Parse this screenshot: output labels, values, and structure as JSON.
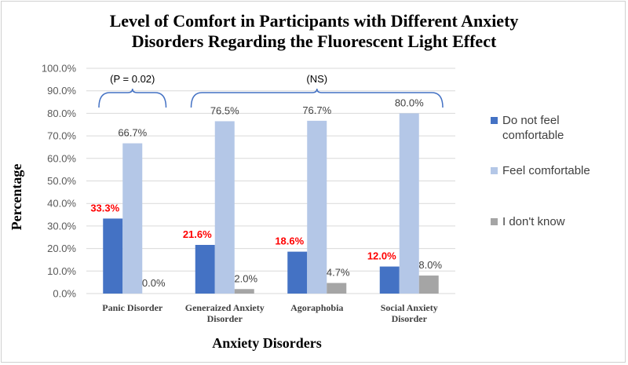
{
  "chart_data": {
    "type": "bar",
    "title_lines": [
      "Level of Comfort in Participants with Different Anxiety",
      "Disorders Regarding the Fluorescent Light Effect"
    ],
    "xlabel": "Anxiety Disorders",
    "ylabel": "Percentage",
    "ylim": [
      0,
      100
    ],
    "yticks": [
      "0.0%",
      "10.0%",
      "20.0%",
      "30.0%",
      "40.0%",
      "50.0%",
      "60.0%",
      "70.0%",
      "80.0%",
      "90.0%",
      "100.0%"
    ],
    "categories": [
      [
        "Panic Disorder"
      ],
      [
        "Generaized Anxiety",
        "Disorder"
      ],
      [
        "Agoraphobia"
      ],
      [
        "Social Anxiety",
        "Disorder"
      ]
    ],
    "series": [
      {
        "name": "Do not feel comfortable",
        "color": "#4472c4",
        "values": [
          33.3,
          21.6,
          18.6,
          12.0
        ],
        "labels": [
          "33.3%",
          "21.6%",
          "18.6%",
          "12.0%"
        ],
        "label_color": "#ff0000"
      },
      {
        "name": "Feel comfortable",
        "color": "#b4c7e7",
        "values": [
          66.7,
          76.5,
          76.7,
          80.0
        ],
        "labels": [
          "66.7%",
          "76.5%",
          "76.7%",
          "80.0%"
        ],
        "label_color": "#404040"
      },
      {
        "name": "I don't know",
        "color": "#a5a5a5",
        "values": [
          0.0,
          2.0,
          4.7,
          8.0
        ],
        "labels": [
          "0.0%",
          "2.0%",
          "4.7%",
          "8.0%"
        ],
        "label_color": "#404040"
      }
    ],
    "annotations": [
      {
        "text": "(P = 0.02)",
        "span": [
          0,
          0
        ]
      },
      {
        "text": "(NS)",
        "span": [
          1,
          3
        ]
      }
    ],
    "legend_position": "right",
    "grid": true
  },
  "legend": {
    "items": [
      {
        "lines": [
          "Do not feel",
          "comfortable"
        ],
        "color": "#4472c4"
      },
      {
        "lines": [
          "Feel comfortable"
        ],
        "color": "#b4c7e7"
      },
      {
        "lines": [
          "I don't know"
        ],
        "color": "#a5a5a5"
      }
    ]
  }
}
